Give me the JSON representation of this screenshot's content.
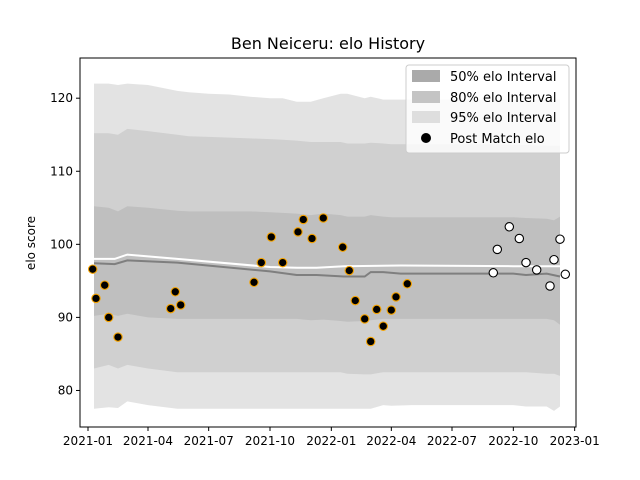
{
  "chart_data": {
    "type": "scatter",
    "title": "Ben Neiceru: elo History",
    "xlabel": "",
    "ylabel": "elo score",
    "xlim": [
      "2020-12-20",
      "2023-01-03"
    ],
    "ylim": [
      75,
      125.5
    ],
    "x_ticks": [
      "2021-01",
      "2021-04",
      "2021-07",
      "2021-10",
      "2022-01",
      "2022-04",
      "2022-07",
      "2022-10",
      "2023-01"
    ],
    "y_ticks": [
      80,
      90,
      100,
      110,
      120
    ],
    "legend_position": "upper right",
    "colors": {
      "band_95": "#e3e3e3",
      "band_80": "#d0d0d0",
      "band_50": "#bfbfbf",
      "mean_line": "#7f7f7f",
      "white_line": "#ffffff",
      "point_face_past": "#000000",
      "point_edge_past": "#f5a300",
      "point_face_future": "#ffffff",
      "point_edge_future": "#000000"
    },
    "legend": [
      {
        "label": "50% elo Interval",
        "kind": "patch",
        "color": "#aaaaaa"
      },
      {
        "label": "80% elo Interval",
        "kind": "patch",
        "color": "#c4c4c4"
      },
      {
        "label": "95% elo Interval",
        "kind": "patch",
        "color": "#dedede"
      },
      {
        "label": "Post Match elo",
        "kind": "marker",
        "color": "#000000"
      }
    ],
    "bands": {
      "x": [
        "2021-01-10",
        "2021-02-01",
        "2021-02-15",
        "2021-03-01",
        "2021-04-01",
        "2021-05-15",
        "2021-06-01",
        "2021-07-01",
        "2021-08-01",
        "2021-09-01",
        "2021-10-01",
        "2021-10-20",
        "2021-11-10",
        "2021-12-01",
        "2021-12-20",
        "2022-01-15",
        "2022-01-25",
        "2022-02-20",
        "2022-03-01",
        "2022-03-20",
        "2022-04-01",
        "2022-05-01",
        "2022-07-01",
        "2022-09-01",
        "2022-10-01",
        "2022-10-20",
        "2022-11-20",
        "2022-12-01",
        "2022-12-10"
      ],
      "p95_low": [
        77.5,
        77.7,
        77.6,
        78.5,
        78.0,
        77.5,
        77.5,
        77.5,
        77.5,
        77.5,
        77.5,
        77.5,
        77.5,
        77.5,
        77.5,
        77.5,
        77.5,
        77.5,
        77.5,
        78.0,
        77.9,
        78.0,
        78.0,
        78.0,
        78.0,
        77.8,
        77.8,
        77.2,
        77.8
      ],
      "p80_low": [
        83.0,
        83.5,
        83.0,
        83.5,
        83.0,
        82.5,
        82.5,
        82.5,
        82.5,
        82.5,
        82.5,
        82.5,
        82.5,
        82.5,
        82.5,
        82.5,
        82.3,
        82.2,
        82.2,
        82.5,
        82.5,
        82.5,
        82.5,
        82.5,
        82.5,
        82.5,
        82.3,
        82.3,
        82.0
      ],
      "p50_low": [
        90.2,
        90.5,
        90.2,
        90.5,
        90.0,
        89.8,
        89.8,
        89.8,
        89.8,
        89.8,
        89.8,
        89.8,
        89.8,
        89.6,
        89.7,
        89.5,
        89.4,
        89.5,
        89.6,
        89.8,
        89.8,
        89.8,
        89.8,
        89.8,
        89.8,
        89.8,
        89.8,
        89.6,
        89.0
      ],
      "p50_high": [
        105.2,
        105.0,
        104.5,
        105.2,
        105.0,
        104.6,
        104.5,
        104.5,
        104.5,
        104.5,
        104.4,
        104.3,
        104.2,
        104.0,
        104.2,
        104.0,
        103.8,
        103.8,
        104.0,
        103.8,
        103.7,
        103.7,
        103.7,
        103.7,
        103.7,
        103.6,
        103.5,
        103.3,
        103.8
      ],
      "p80_high": [
        115.2,
        115.2,
        115.0,
        115.8,
        115.5,
        115.0,
        114.8,
        114.7,
        114.6,
        114.5,
        114.4,
        114.3,
        114.2,
        114.0,
        114.0,
        114.0,
        113.8,
        113.8,
        113.9,
        113.8,
        113.7,
        113.7,
        113.7,
        113.7,
        113.6,
        113.6,
        113.5,
        113.5,
        113.5
      ],
      "p95_high": [
        122.0,
        122.0,
        121.8,
        122.0,
        121.8,
        121.0,
        120.8,
        120.6,
        120.5,
        120.2,
        120.0,
        120.0,
        119.5,
        119.5,
        120.0,
        120.6,
        120.6,
        120.0,
        120.2,
        119.8,
        119.8,
        119.8,
        119.8,
        119.8,
        119.8,
        119.8,
        119.8,
        119.8,
        119.8
      ]
    },
    "mean_line": {
      "x": [
        "2021-01-10",
        "2021-02-10",
        "2021-03-01",
        "2021-05-15",
        "2021-10-01",
        "2021-11-10",
        "2021-12-10",
        "2022-01-20",
        "2022-02-20",
        "2022-03-01",
        "2022-03-20",
        "2022-04-15",
        "2022-10-01",
        "2022-10-20",
        "2022-11-20",
        "2022-12-10"
      ],
      "y": [
        97.4,
        97.3,
        97.8,
        97.5,
        96.3,
        95.8,
        95.8,
        95.6,
        95.6,
        96.2,
        96.2,
        96.0,
        96.0,
        95.8,
        96.0,
        95.6
      ]
    },
    "white_line": {
      "x": [
        "2021-01-10",
        "2021-02-10",
        "2021-03-01",
        "2021-05-15",
        "2021-10-01",
        "2021-11-10",
        "2021-12-10",
        "2022-01-20",
        "2022-04-15",
        "2022-10-01",
        "2022-12-10"
      ],
      "y": [
        98.0,
        98.0,
        98.6,
        98.0,
        96.9,
        96.8,
        96.8,
        97.0,
        97.1,
        97.0,
        97.0
      ]
    },
    "series": [
      {
        "name": "Post Match elo",
        "x": [
          "2021-01-08",
          "2021-01-13",
          "2021-01-26",
          "2021-02-01",
          "2021-02-15",
          "2021-05-05",
          "2021-05-12",
          "2021-05-20",
          "2021-09-07",
          "2021-09-18",
          "2021-10-03",
          "2021-10-20",
          "2021-11-12",
          "2021-11-20",
          "2021-12-03",
          "2021-12-20",
          "2022-01-18",
          "2022-01-28",
          "2022-02-06",
          "2022-02-20",
          "2022-03-01",
          "2022-03-10",
          "2022-03-20",
          "2022-04-01",
          "2022-04-08",
          "2022-04-25"
        ],
        "y": [
          96.6,
          92.6,
          94.4,
          90.0,
          87.3,
          91.2,
          93.5,
          91.7,
          94.8,
          97.5,
          101.0,
          97.5,
          101.7,
          103.4,
          100.8,
          103.6,
          99.6,
          96.4,
          92.3,
          89.8,
          86.7,
          91.1,
          88.8,
          91.0,
          92.8,
          94.6
        ]
      },
      {
        "name": "",
        "x": [
          "2022-09-01",
          "2022-09-07",
          "2022-09-25",
          "2022-10-10",
          "2022-10-20",
          "2022-11-05",
          "2022-11-25",
          "2022-12-01",
          "2022-12-10",
          "2022-12-18"
        ],
        "y": [
          96.1,
          99.3,
          102.4,
          100.8,
          97.5,
          96.5,
          94.3,
          97.9,
          100.7,
          95.9
        ]
      }
    ]
  }
}
